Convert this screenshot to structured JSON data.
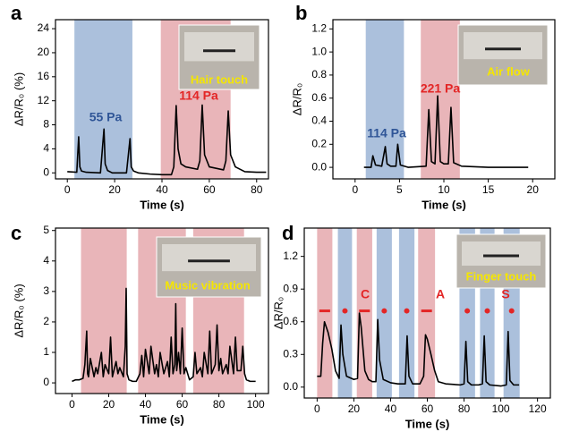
{
  "chart_data": [
    {
      "type": "line",
      "panel": "a",
      "xlabel": "Time (s)",
      "ylabel": "ΔR/R₀ (%)",
      "color": "#000000",
      "x": [
        0,
        4,
        4.8,
        5.3,
        6,
        8,
        14,
        15.5,
        16,
        17,
        19,
        25,
        26.5,
        27,
        28,
        30,
        35,
        40,
        44,
        45,
        46,
        46.8,
        48,
        50,
        55,
        56,
        57,
        58,
        60,
        66,
        67,
        68,
        69,
        71,
        75,
        80,
        84
      ],
      "values": [
        0.2,
        0.1,
        6,
        1,
        0.3,
        0.1,
        0,
        7.3,
        1.5,
        0.4,
        0,
        0,
        5.7,
        1,
        0.3,
        0,
        -0.2,
        -0.3,
        -0.3,
        1,
        11.2,
        4,
        1.5,
        1,
        0.6,
        2,
        11.3,
        3,
        1,
        0.5,
        2,
        10.3,
        3,
        1,
        0.2,
        0.1,
        0.1
      ],
      "xlim": [
        -5,
        85
      ],
      "xticks": [
        0,
        20,
        40,
        60,
        80
      ],
      "ylim": [
        -1,
        25.5
      ],
      "yticks": [
        0,
        4,
        8,
        12,
        16,
        20,
        24
      ],
      "shaded": [
        {
          "start": 3,
          "end": 27.5,
          "color": "#abc0dc"
        },
        {
          "start": 39.5,
          "end": 69,
          "color": "#e9b5b9"
        }
      ],
      "annotations": [
        {
          "text": "55 Pa",
          "color": "#2f5597"
        },
        {
          "text": "114 Pa",
          "color": "#e32626"
        }
      ],
      "inset": "Hair touch"
    },
    {
      "type": "line",
      "panel": "b",
      "xlabel": "Time (s)",
      "ylabel": "ΔR/R₀",
      "color": "#000000",
      "x": [
        1,
        1.8,
        2,
        2.3,
        3,
        3.4,
        3.6,
        4,
        4.6,
        4.8,
        5.1,
        6,
        8,
        8.3,
        8.6,
        9,
        9.3,
        9.6,
        10,
        10.5,
        10.8,
        11.1,
        12,
        15,
        19.5
      ],
      "values": [
        0,
        0,
        0.1,
        0.02,
        0.01,
        0.18,
        0.03,
        0.01,
        0.01,
        0.2,
        0.02,
        0,
        0.01,
        0.5,
        0.05,
        0.03,
        0.62,
        0.05,
        0.03,
        0.03,
        0.52,
        0.04,
        0.01,
        0,
        0
      ],
      "xlim": [
        -2.5,
        22.5
      ],
      "xticks": [
        0,
        5,
        10,
        15,
        20
      ],
      "ylim": [
        -0.1,
        1.28
      ],
      "yticks": [
        {
          "value": 0,
          "label": "0.0"
        },
        {
          "value": 0.2,
          "label": "0.2"
        },
        {
          "value": 0.4,
          "label": "0.4"
        },
        {
          "value": 0.6,
          "label": "0.6"
        },
        {
          "value": 0.8,
          "label": "0.8"
        },
        {
          "value": 1,
          "label": "1.0"
        },
        {
          "value": 1.2,
          "label": "1.2"
        }
      ],
      "shaded": [
        {
          "start": 1.2,
          "end": 5.5,
          "color": "#abc0dc"
        },
        {
          "start": 7.4,
          "end": 11.8,
          "color": "#e9b5b9"
        }
      ],
      "annotations": [
        {
          "text": "114 Pa",
          "color": "#2f5597"
        },
        {
          "text": "221 Pa",
          "color": "#e32626"
        }
      ],
      "inset": "Air flow"
    },
    {
      "type": "line",
      "panel": "c",
      "xlabel": "Time (s)",
      "ylabel": "ΔR/R₀ (%)",
      "color": "#000000",
      "x": [
        0,
        2,
        4,
        6,
        7,
        8,
        8.5,
        9,
        10,
        12,
        13,
        14,
        16,
        17,
        18,
        20,
        21,
        22,
        24,
        25,
        26,
        28,
        29,
        29.5,
        30,
        31,
        33,
        35,
        37,
        38,
        39,
        40,
        42,
        43,
        45,
        46,
        47,
        48,
        50,
        52,
        53,
        54,
        55,
        56,
        56.5,
        57,
        58,
        59,
        60,
        61,
        62,
        64,
        66,
        67,
        68,
        70,
        71,
        72,
        74,
        75,
        76,
        78,
        79,
        80,
        81,
        82,
        84,
        85,
        86,
        88,
        89,
        90,
        92,
        93,
        94,
        95,
        97,
        100
      ],
      "values": [
        0.05,
        0.1,
        0.1,
        0.15,
        0.6,
        1.7,
        0.3,
        0.2,
        0.8,
        0.2,
        0.5,
        0.3,
        1.0,
        0.2,
        0.6,
        0.3,
        1.5,
        0.2,
        0.7,
        0.3,
        0.5,
        0.2,
        1.2,
        3.1,
        0.3,
        0.1,
        0.05,
        0.05,
        0.3,
        0.9,
        0.2,
        1.1,
        0.3,
        1.2,
        0.3,
        0.6,
        0.2,
        1.0,
        0.3,
        0.7,
        0.2,
        1.5,
        0.3,
        0.6,
        2.6,
        0.4,
        1.0,
        0.3,
        1.8,
        0.3,
        0.5,
        0.1,
        0.2,
        1.0,
        0.3,
        0.5,
        0.2,
        1.0,
        0.3,
        1.7,
        0.3,
        0.6,
        1.9,
        0.4,
        0.8,
        0.3,
        0.6,
        0.3,
        1.2,
        0.3,
        1.5,
        0.4,
        0.4,
        1.2,
        0.3,
        0.1,
        0.05,
        0.05
      ],
      "xlim": [
        -9,
        107
      ],
      "xticks": [
        0,
        20,
        40,
        60,
        80,
        100
      ],
      "ylim": [
        -0.35,
        5.08
      ],
      "yticks": [
        0,
        1,
        2,
        3,
        4,
        5
      ],
      "shaded": [
        {
          "start": 4.9,
          "end": 29.8,
          "color": "#e9b5b9"
        },
        {
          "start": 36,
          "end": 62,
          "color": "#e9b5b9"
        },
        {
          "start": 66,
          "end": 93.7,
          "color": "#e9b5b9"
        }
      ],
      "annotations": [],
      "inset": "Music vibration"
    },
    {
      "type": "line",
      "panel": "d",
      "xlabel": "Time (s)",
      "ylabel": "ΔR/R₀",
      "color": "#000000",
      "x": [
        0,
        2,
        3,
        4,
        6,
        8,
        10,
        12,
        13,
        14,
        16,
        20,
        22,
        23,
        24,
        25,
        26,
        28,
        30,
        32,
        33,
        34,
        36,
        40,
        44,
        48,
        49,
        50,
        52,
        56,
        58,
        59,
        60,
        62,
        64,
        66,
        70,
        78,
        80,
        81,
        82,
        84,
        88,
        90,
        91,
        92,
        94,
        100,
        103,
        104,
        105,
        107,
        110
      ],
      "values": [
        0.1,
        0.1,
        0.4,
        0.6,
        0.5,
        0.35,
        0.15,
        0.08,
        0.57,
        0.3,
        0.1,
        0.07,
        0.08,
        0.68,
        0.55,
        0.35,
        0.15,
        0.07,
        0.05,
        0.05,
        0.62,
        0.25,
        0.07,
        0.04,
        0.03,
        0.03,
        0.47,
        0.1,
        0.03,
        0.03,
        0.1,
        0.48,
        0.44,
        0.3,
        0.15,
        0.05,
        0.03,
        0.02,
        0.03,
        0.42,
        0.05,
        0.02,
        0.02,
        0.03,
        0.47,
        0.05,
        0.02,
        0.01,
        0.02,
        0.51,
        0.06,
        0.02,
        0.02
      ],
      "xlim": [
        -7,
        127
      ],
      "xticks": [
        0,
        20,
        40,
        60,
        80,
        100,
        120
      ],
      "ylim": [
        -0.1,
        1.46
      ],
      "yticks": [
        {
          "value": 0,
          "label": "0.0"
        },
        {
          "value": 0.3,
          "label": "0.3"
        },
        {
          "value": 0.6,
          "label": "0.6"
        },
        {
          "value": 0.9,
          "label": "0.9"
        },
        {
          "value": 1.2,
          "label": "1.2"
        }
      ],
      "shaded": [
        {
          "start": 0,
          "end": 8.3,
          "color": "#e9b5b9"
        },
        {
          "start": 11.3,
          "end": 19,
          "color": "#abc0dc"
        },
        {
          "start": 21.6,
          "end": 30,
          "color": "#e9b5b9"
        },
        {
          "start": 32.4,
          "end": 40.7,
          "color": "#abc0dc"
        },
        {
          "start": 44.6,
          "end": 53,
          "color": "#abc0dc"
        },
        {
          "start": 55,
          "end": 64.2,
          "color": "#e9b5b9"
        },
        {
          "start": 77.5,
          "end": 86,
          "color": "#abc0dc"
        },
        {
          "start": 88.7,
          "end": 96.6,
          "color": "#abc0dc"
        },
        {
          "start": 101.5,
          "end": 110.3,
          "color": "#abc0dc"
        }
      ],
      "annotations": [
        {
          "text": "C",
          "color": "#e32626"
        },
        {
          "text": "A",
          "color": "#e32626"
        },
        {
          "text": "S",
          "color": "#e32626"
        }
      ],
      "inset": "Finger touch"
    }
  ]
}
